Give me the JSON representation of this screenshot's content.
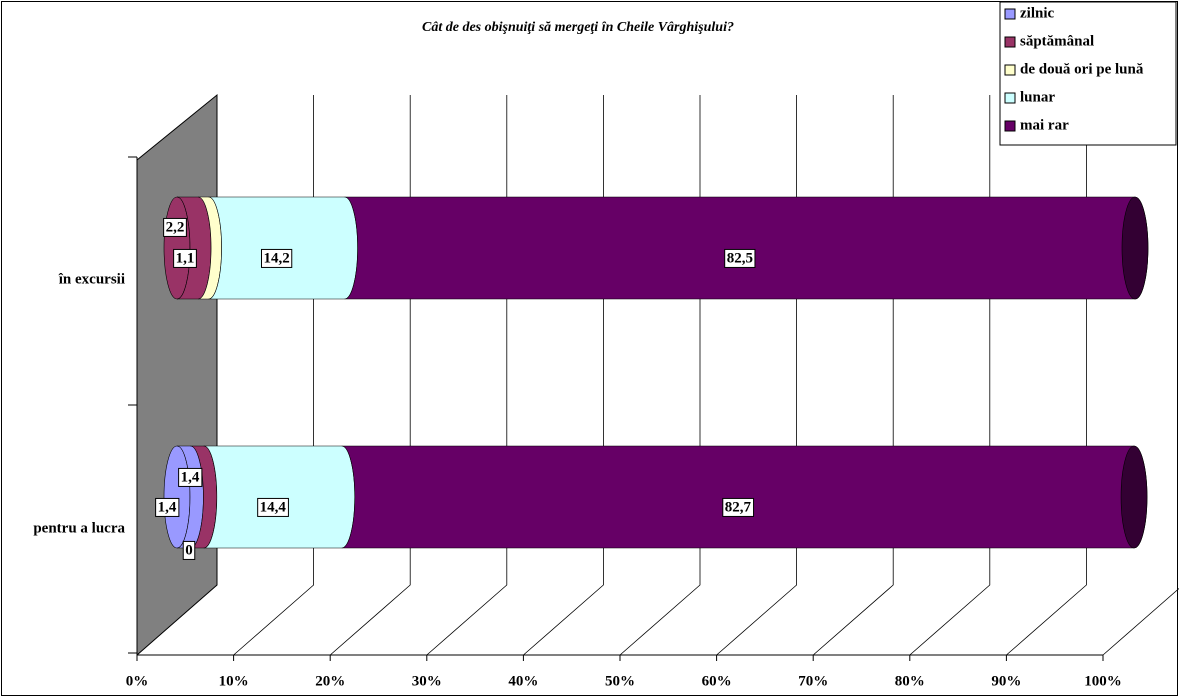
{
  "chart_data": {
    "type": "bar3d_stacked_horizontal",
    "title": "Cât de des obişnuiţi să mergeţi în Cheile Vârghişului?",
    "categories": [
      "în excursii",
      "pentru a lucra"
    ],
    "series": [
      {
        "name": "zilnic",
        "color": "#9999ff",
        "values": [
          0,
          1.4
        ],
        "value_labels": [
          null,
          "1,4"
        ]
      },
      {
        "name": "săptămânal",
        "color": "#993366",
        "values": [
          2.2,
          1.4
        ],
        "value_labels": [
          "2,2",
          "1,4"
        ]
      },
      {
        "name": "de două ori pe lună",
        "color": "#ffffcc",
        "values": [
          1.1,
          0
        ],
        "value_labels": [
          "1,1",
          "0"
        ]
      },
      {
        "name": "lunar",
        "color": "#ccffff",
        "values": [
          14.2,
          14.4
        ],
        "value_labels": [
          "14,2",
          "14,4"
        ]
      },
      {
        "name": "mai rar",
        "color": "#660066",
        "values": [
          82.5,
          82.7
        ],
        "value_labels": [
          "82,5",
          "82,7"
        ]
      }
    ],
    "xlim": [
      0,
      100
    ],
    "xticks": [
      {
        "value": 0,
        "label": "0%"
      },
      {
        "value": 10,
        "label": "10%"
      },
      {
        "value": 20,
        "label": "20%"
      },
      {
        "value": 30,
        "label": "30%"
      },
      {
        "value": 40,
        "label": "40%"
      },
      {
        "value": 50,
        "label": "50%"
      },
      {
        "value": 60,
        "label": "60%"
      },
      {
        "value": 70,
        "label": "70%"
      },
      {
        "value": 80,
        "label": "80%"
      },
      {
        "value": 90,
        "label": "90%"
      },
      {
        "value": 100,
        "label": "100%"
      }
    ],
    "grid": true,
    "legend": "top-right"
  }
}
